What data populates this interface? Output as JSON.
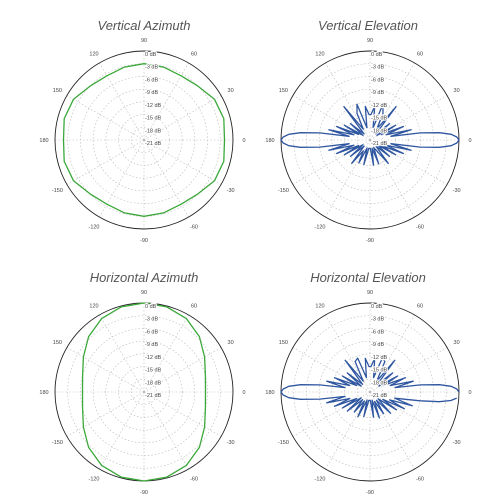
{
  "chart_data": [
    {
      "type": "polar-line",
      "title": "Vertical Azimuth",
      "angle_labels": [
        "90",
        "60",
        "30",
        "0",
        "-30",
        "-60",
        "-90",
        "-120",
        "-150",
        "180",
        "150",
        "120"
      ],
      "ring_labels": [
        "0 dB",
        "-3 dB",
        "-6 dB",
        "-9 dB",
        "-12 dB",
        "-15 dB",
        "-18 dB",
        "-21 dB"
      ],
      "r_range_db": [
        -21,
        0
      ],
      "series_color": "#3aa83a",
      "series": [
        {
          "theta_deg": [
            0,
            15,
            30,
            45,
            60,
            75,
            90,
            105,
            120,
            135,
            150,
            165,
            180,
            195,
            210,
            225,
            240,
            255,
            270,
            285,
            300,
            315,
            330,
            345
          ],
          "r_db": [
            -2,
            -1.5,
            -1.8,
            -3,
            -3.5,
            -3.2,
            -3,
            -3.2,
            -3.5,
            -3,
            -1.8,
            -1.5,
            -2,
            -1.5,
            -1.8,
            -3,
            -3.5,
            -3.2,
            -3,
            -3.2,
            -3.5,
            -3,
            -1.8,
            -1.5
          ]
        }
      ]
    },
    {
      "type": "polar-line",
      "title": "Vertical Elevation",
      "angle_labels": [
        "90",
        "60",
        "30",
        "0",
        "-30",
        "-60",
        "-90",
        "-120",
        "-150",
        "180",
        "150",
        "120"
      ],
      "ring_labels": [
        "0 dB",
        "-3 dB",
        "-6 dB",
        "-9 dB",
        "-12 dB",
        "-15 dB",
        "-18 dB",
        "-21 dB"
      ],
      "r_range_db": [
        -21,
        0
      ],
      "series_color": "#2f56a0",
      "series": [
        {
          "theta_deg": [
            0,
            2,
            4,
            6,
            8,
            10,
            14,
            18,
            22,
            26,
            30,
            34,
            40,
            46,
            52,
            58,
            64,
            70,
            76,
            82,
            88,
            92,
            98,
            104,
            110,
            116,
            122,
            128,
            134,
            140,
            146,
            150,
            154,
            158,
            162,
            166,
            170,
            172,
            174,
            176,
            178,
            180,
            182,
            184,
            186,
            188,
            190,
            194,
            198,
            202,
            206,
            210,
            214,
            220,
            226,
            232,
            238,
            244,
            250,
            256,
            262,
            268,
            272,
            278,
            284,
            290,
            296,
            302,
            308,
            314,
            320,
            326,
            330,
            334,
            338,
            342,
            346,
            350,
            352,
            354,
            356,
            358
          ],
          "r_db": [
            0,
            -0.5,
            -1.8,
            -4.5,
            -9,
            -16,
            -11,
            -17,
            -12.5,
            -18,
            -14,
            -19,
            -15,
            -19,
            -11,
            -18,
            -14,
            -12,
            -18,
            -13,
            -15,
            -15,
            -13,
            -18,
            -12,
            -14,
            -18,
            -11,
            -19,
            -15,
            -19,
            -14,
            -18,
            -12.5,
            -17,
            -11,
            -16,
            -9,
            -4.5,
            -1.8,
            -0.5,
            0,
            -0.5,
            -1.8,
            -4.5,
            -9,
            -16,
            -11,
            -17,
            -12.5,
            -18,
            -14,
            -19,
            -15,
            -19,
            -14,
            -18,
            -15,
            -19,
            -15,
            -19,
            -19,
            -19,
            -15,
            -19,
            -15,
            -19,
            -18,
            -14,
            -19,
            -15,
            -19,
            -14,
            -18,
            -12.5,
            -17,
            -11,
            -16,
            -9,
            -4.5,
            -1.8,
            -0.5
          ]
        }
      ]
    },
    {
      "type": "polar-line",
      "title": "Horizontal Azimuth",
      "angle_labels": [
        "90",
        "60",
        "30",
        "0",
        "-30",
        "-60",
        "-90",
        "-120",
        "-150",
        "180",
        "150",
        "120"
      ],
      "ring_labels": [
        "0 dB",
        "-3 dB",
        "-6 dB",
        "-9 dB",
        "-12 dB",
        "-15 dB",
        "-18 dB",
        "-21 dB"
      ],
      "r_range_db": [
        -21,
        0
      ],
      "series_color": "#3aa83a",
      "series": [
        {
          "theta_deg": [
            0,
            15,
            30,
            45,
            60,
            75,
            90,
            105,
            120,
            135,
            150,
            165,
            180,
            195,
            210,
            225,
            240,
            255,
            270,
            285,
            300,
            315,
            330,
            345
          ],
          "r_db": [
            -6.5,
            -6,
            -4.5,
            -2.5,
            -1,
            -0.2,
            0,
            -0.2,
            -1,
            -2.5,
            -4.5,
            -6,
            -6.5,
            -6,
            -4.5,
            -2.5,
            -1,
            -0.2,
            0,
            -0.2,
            -1,
            -2.5,
            -4.5,
            -6
          ]
        }
      ]
    },
    {
      "type": "polar-line",
      "title": "Horizontal Elevation",
      "angle_labels": [
        "90",
        "60",
        "30",
        "0",
        "-30",
        "-60",
        "-90",
        "-120",
        "-150",
        "180",
        "150",
        "120"
      ],
      "ring_labels": [
        "0 dB",
        "-3 dB",
        "-6 dB",
        "-9 dB",
        "-12 dB",
        "-15 dB",
        "-18 dB",
        "-21 dB"
      ],
      "r_range_db": [
        -21,
        0
      ],
      "series_color": "#2f56a0",
      "series": [
        {
          "theta_deg": [
            0,
            2,
            4,
            6,
            8,
            10,
            14,
            18,
            22,
            26,
            30,
            34,
            40,
            46,
            52,
            58,
            64,
            70,
            76,
            82,
            88,
            92,
            98,
            104,
            110,
            116,
            122,
            128,
            134,
            140,
            146,
            150,
            154,
            158,
            162,
            166,
            170,
            172,
            174,
            176,
            178,
            180,
            182,
            184,
            186,
            188,
            190,
            194,
            198,
            202,
            206,
            210,
            214,
            220,
            226,
            232,
            238,
            244,
            250,
            256,
            262,
            268,
            272,
            278,
            284,
            290,
            296,
            302,
            308,
            314,
            320,
            326,
            330,
            334,
            338,
            342,
            346,
            350,
            352,
            354,
            356,
            358
          ],
          "r_db": [
            0,
            -0.5,
            -1.8,
            -4.5,
            -9,
            -15,
            -10.5,
            -16,
            -12,
            -17.5,
            -13.5,
            -18.5,
            -14,
            -18.5,
            -11.5,
            -18,
            -13,
            -12.5,
            -17.5,
            -13,
            -15,
            -15,
            -13,
            -17.5,
            -12.5,
            -13,
            -18,
            -11.5,
            -18.5,
            -14,
            -18.5,
            -13.5,
            -17.5,
            -12,
            -16,
            -10.5,
            -15,
            -9,
            -4.5,
            -1.8,
            -0.5,
            0,
            -0.5,
            -1.8,
            -4.5,
            -9,
            -15,
            -10.5,
            -16,
            -12,
            -17.5,
            -13.5,
            -18.5,
            -14,
            -18.5,
            -15,
            -18.5,
            -14.5,
            -19,
            -15,
            -19,
            -19,
            -19,
            -15,
            -19,
            -14.5,
            -18.5,
            -15,
            -18.5,
            -14,
            -18.5,
            -13.5,
            -17.5,
            -12,
            -16,
            -10.5,
            -15,
            -9,
            -4.5,
            -1.8,
            -0.5
          ]
        }
      ]
    }
  ]
}
